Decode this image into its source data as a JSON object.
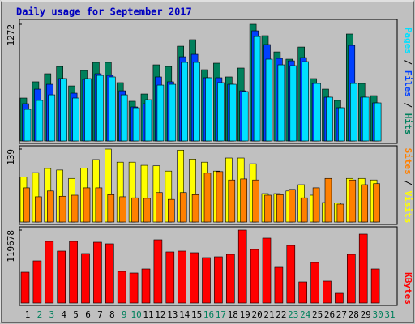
{
  "chart_data": {
    "type": "bar",
    "title": "Daily usage for September 2017",
    "categories": [
      "1",
      "2",
      "3",
      "4",
      "5",
      "6",
      "7",
      "8",
      "9",
      "10",
      "11",
      "12",
      "13",
      "14",
      "15",
      "16",
      "17",
      "18",
      "19",
      "20",
      "21",
      "22",
      "23",
      "24",
      "25",
      "26",
      "27",
      "28",
      "29",
      "30",
      "31"
    ],
    "category_colors": [
      "#000000",
      "#00805c",
      "#00805c",
      "#000000",
      "#000000",
      "#000000",
      "#000000",
      "#000000",
      "#00805c",
      "#00805c",
      "#000000",
      "#000000",
      "#000000",
      "#000000",
      "#000000",
      "#00805c",
      "#00805c",
      "#000000",
      "#000000",
      "#000000",
      "#000000",
      "#000000",
      "#00805c",
      "#00805c",
      "#000000",
      "#000000",
      "#000000",
      "#000000",
      "#000000",
      "#00805c",
      "#00805c"
    ],
    "panels": [
      {
        "type": "bar",
        "ylim": [
          0,
          1272
        ],
        "yticks": [
          1272
        ],
        "series": [
          {
            "name": "Hits",
            "color": "#00805c",
            "values": [
              468,
              645,
              733,
              812,
              600,
              768,
              857,
              857,
              636,
              433,
              512,
              830,
              812,
              1033,
              1104,
              777,
              848,
              698,
              795,
              1272,
              1148,
              971,
              892,
              1024,
              680,
              565,
              442,
              1166,
              627,
              494,
              null
            ]
          },
          {
            "name": "Files",
            "color": "#0040ff",
            "values": [
              406,
              565,
              618,
              680,
              521,
              671,
              733,
              715,
              547,
              371,
              406,
              698,
              645,
              918,
              945,
              689,
              689,
              618,
              547,
              1201,
              1051,
              901,
              874,
              909,
              627,
              477,
              362,
              1042,
              477,
              415,
              null
            ]
          },
          {
            "name": "Pages",
            "color": "#00e0ff",
            "values": [
              344,
              442,
              503,
              680,
              468,
              680,
              715,
              698,
              503,
              362,
              450,
              609,
              618,
              857,
              857,
              689,
              636,
              618,
              539,
              1139,
              892,
              830,
              821,
              865,
              627,
              477,
              362,
              627,
              477,
              415,
              null
            ]
          }
        ]
      },
      {
        "type": "bar",
        "ylim": [
          0,
          139
        ],
        "yticks": [
          139
        ],
        "series": [
          {
            "name": "Visits",
            "color": "#ffff00",
            "values": [
              86,
              94,
              102,
              99,
              83,
              103,
              119,
              139,
              114,
              114,
              108,
              107,
              97,
              137,
              120,
              114,
              97,
              122,
              122,
              111,
              54,
              54,
              59,
              71,
              51,
              37,
              36,
              83,
              83,
              80,
              null
            ]
          },
          {
            "name": "Sites",
            "color": "#ff8000",
            "values": [
              65,
              48,
              59,
              49,
              51,
              65,
              65,
              52,
              48,
              46,
              45,
              56,
              43,
              56,
              52,
              93,
              96,
              80,
              82,
              80,
              51,
              52,
              62,
              46,
              65,
              83,
              34,
              80,
              71,
              73,
              null
            ]
          }
        ]
      },
      {
        "type": "bar",
        "ylim": [
          0,
          119678
        ],
        "yticks": [
          119678
        ],
        "series": [
          {
            "name": "KBytes",
            "color": "#ff0000",
            "values": [
              50540,
              69160,
              101080,
              85120,
              101080,
              81130,
              99750,
              97090,
              51870,
              49210,
              55860,
              103740,
              83790,
              85120,
              82460,
              74480,
              75810,
              79800,
              119678,
              87780,
              106400,
              58520,
              94430,
              34580,
              66500,
              35910,
              15960,
              79800,
              113050,
              55860,
              null
            ]
          }
        ]
      }
    ]
  }
}
